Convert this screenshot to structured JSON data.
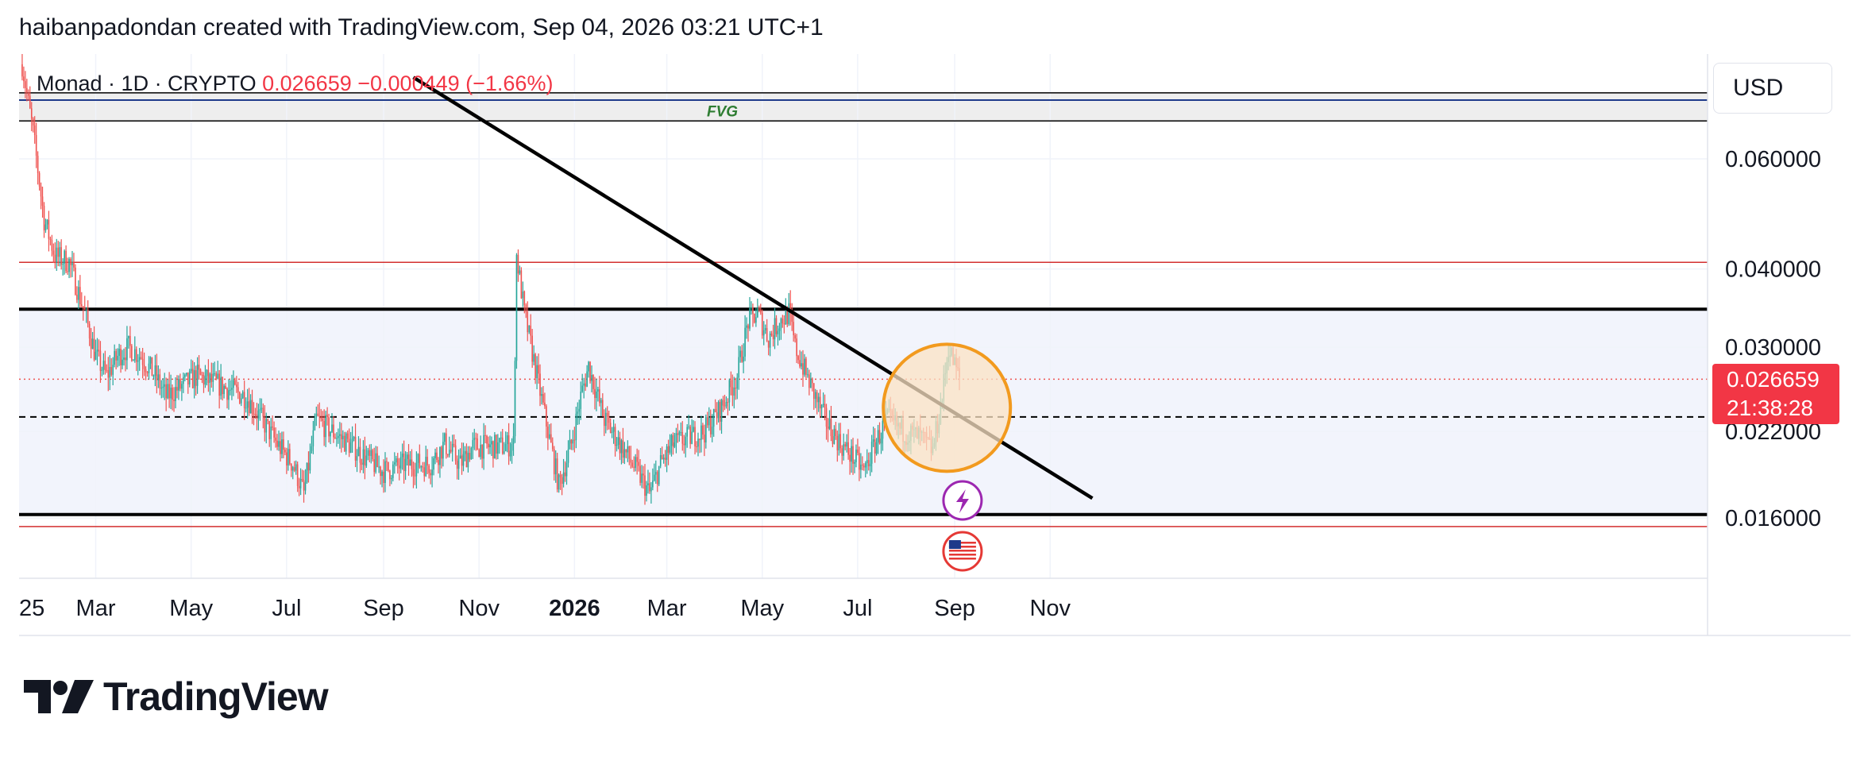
{
  "header": {
    "text": "haibanpadondan created with TradingView.com, Sep 04, 2026 03:21 UTC+1"
  },
  "legend": {
    "symbol": "Monad · 1D · CRYPTO",
    "price": "0.026659",
    "change": "−0.000449 (−1.66%)"
  },
  "currency_button": "USD",
  "price_tag": {
    "price": "0.026659",
    "countdown": "21:38:28"
  },
  "annotations": {
    "fvg": "FVG"
  },
  "brand": {
    "name": "TradingView"
  },
  "colors": {
    "up": "#26a69a",
    "down": "#ef5350",
    "trendline": "#000000",
    "redline": "#d32f2f",
    "blueline": "#1e3a8a",
    "circle_fill": "#fbe3c4",
    "circle_stroke": "#f29a1e",
    "range_fill": "#f2f4fc",
    "fvg_fill": "#eeeeee",
    "fvg_text": "#2e7d32"
  },
  "chart_data": {
    "type": "candlestick",
    "scale": "log",
    "price_axis_labels": [
      0.06,
      0.04,
      0.03,
      0.022,
      0.016
    ],
    "price_axis_label_text": [
      "0.060000",
      "0.040000",
      "0.030000",
      "0.022000",
      "0.016000"
    ],
    "time_axis_labels": [
      "25",
      "Mar",
      "May",
      "Jul",
      "Sep",
      "Nov",
      "2026",
      "Mar",
      "May",
      "Jul",
      "Sep",
      "Nov"
    ],
    "time_axis_bold": [
      "2026"
    ],
    "last_price": 0.026659,
    "horizontal_levels": [
      {
        "price": 0.0345,
        "style": "thick-black"
      },
      {
        "price": 0.0162,
        "style": "thick-black"
      },
      {
        "price": 0.0232,
        "style": "dashed-black"
      },
      {
        "price": 0.041,
        "style": "thin-red"
      },
      {
        "price": 0.0155,
        "style": "thin-red"
      },
      {
        "price": 0.0765,
        "style": "thin-black"
      },
      {
        "price": 0.0745,
        "style": "thin-blue"
      },
      {
        "price": 0.069,
        "style": "thin-black"
      }
    ],
    "range_zone": {
      "top": 0.0345,
      "bottom": 0.0162
    },
    "fvg_zone": {
      "top": 0.0765,
      "bottom": 0.069
    },
    "trendline": [
      {
        "date": "2025-09-20",
        "price": 0.081
      },
      {
        "date": "2026-11-28",
        "price": 0.0172
      }
    ],
    "highlight_circle": {
      "date": "2026-08-27",
      "price": 0.024
    },
    "path": [
      [
        "2025-01-13",
        0.085
      ],
      [
        "2025-01-20",
        0.066
      ],
      [
        "2025-01-27",
        0.048
      ],
      [
        "2025-02-03",
        0.042
      ],
      [
        "2025-02-12",
        0.041
      ],
      [
        "2025-02-22",
        0.034
      ],
      [
        "2025-03-01",
        0.029
      ],
      [
        "2025-03-08",
        0.027
      ],
      [
        "2025-03-15",
        0.029
      ],
      [
        "2025-03-22",
        0.03
      ],
      [
        "2025-03-30",
        0.029
      ],
      [
        "2025-04-08",
        0.027
      ],
      [
        "2025-04-15",
        0.025
      ],
      [
        "2025-04-25",
        0.026
      ],
      [
        "2025-05-05",
        0.027
      ],
      [
        "2025-05-20",
        0.026
      ],
      [
        "2025-06-05",
        0.025
      ],
      [
        "2025-06-15",
        0.023
      ],
      [
        "2025-06-25",
        0.021
      ],
      [
        "2025-07-05",
        0.0195
      ],
      [
        "2025-07-12",
        0.0175
      ],
      [
        "2025-07-20",
        0.023
      ],
      [
        "2025-07-30",
        0.022
      ],
      [
        "2025-08-10",
        0.021
      ],
      [
        "2025-08-20",
        0.02
      ],
      [
        "2025-09-01",
        0.019
      ],
      [
        "2025-09-15",
        0.0195
      ],
      [
        "2025-10-01",
        0.0195
      ],
      [
        "2025-10-10",
        0.021
      ],
      [
        "2025-10-20",
        0.0195
      ],
      [
        "2025-10-28",
        0.0208
      ],
      [
        "2025-11-15",
        0.0208
      ],
      [
        "2025-11-23",
        0.021
      ],
      [
        "2025-11-25",
        0.042
      ],
      [
        "2025-11-30",
        0.034
      ],
      [
        "2025-12-08",
        0.027
      ],
      [
        "2025-12-15",
        0.022
      ],
      [
        "2025-12-22",
        0.018
      ],
      [
        "2025-12-30",
        0.021
      ],
      [
        "2026-01-05",
        0.025
      ],
      [
        "2026-01-10",
        0.028
      ],
      [
        "2026-01-20",
        0.023
      ],
      [
        "2026-01-30",
        0.021
      ],
      [
        "2026-02-10",
        0.019
      ],
      [
        "2026-02-18",
        0.0175
      ],
      [
        "2026-02-25",
        0.0195
      ],
      [
        "2026-03-05",
        0.021
      ],
      [
        "2026-03-15",
        0.0215
      ],
      [
        "2026-03-25",
        0.022
      ],
      [
        "2026-04-05",
        0.024
      ],
      [
        "2026-04-15",
        0.027
      ],
      [
        "2026-04-22",
        0.033
      ],
      [
        "2026-04-28",
        0.034
      ],
      [
        "2026-05-05",
        0.031
      ],
      [
        "2026-05-12",
        0.033
      ],
      [
        "2026-05-18",
        0.034
      ],
      [
        "2026-05-22",
        0.03
      ],
      [
        "2026-06-01",
        0.026
      ],
      [
        "2026-06-10",
        0.023
      ],
      [
        "2026-06-20",
        0.021
      ],
      [
        "2026-06-28",
        0.02
      ],
      [
        "2026-07-05",
        0.019
      ],
      [
        "2026-07-12",
        0.021
      ],
      [
        "2026-07-20",
        0.023
      ],
      [
        "2026-07-30",
        0.022
      ],
      [
        "2026-08-10",
        0.0215
      ],
      [
        "2026-08-18",
        0.0205
      ],
      [
        "2026-08-24",
        0.025
      ],
      [
        "2026-08-28",
        0.03
      ],
      [
        "2026-09-04",
        0.0267
      ]
    ]
  }
}
